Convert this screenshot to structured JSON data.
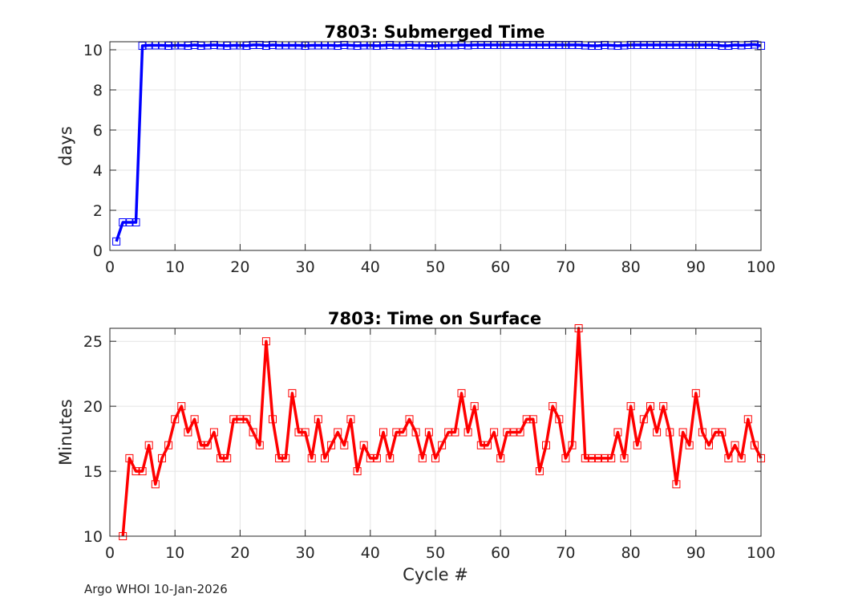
{
  "chart_data": [
    {
      "type": "line",
      "title": "7803: Submerged Time",
      "xlabel": "",
      "ylabel": "days",
      "xlim": [
        0,
        100
      ],
      "ylim": [
        0,
        10.4
      ],
      "xticks": [
        0,
        10,
        20,
        30,
        40,
        50,
        60,
        70,
        80,
        90,
        100
      ],
      "yticks": [
        0,
        2,
        4,
        6,
        8,
        10
      ],
      "grid": true,
      "color": "#0000ff",
      "marker": "square",
      "series": [
        {
          "name": "Submerged Time",
          "x": [
            1,
            2,
            3,
            4,
            5,
            6,
            7,
            8,
            9,
            10,
            11,
            12,
            13,
            14,
            15,
            16,
            17,
            18,
            19,
            20,
            21,
            22,
            23,
            24,
            25,
            26,
            27,
            28,
            29,
            30,
            31,
            32,
            33,
            34,
            35,
            36,
            37,
            38,
            39,
            40,
            41,
            42,
            43,
            44,
            45,
            46,
            47,
            48,
            49,
            50,
            51,
            52,
            53,
            54,
            55,
            56,
            57,
            58,
            59,
            60,
            61,
            62,
            63,
            64,
            65,
            66,
            67,
            68,
            69,
            70,
            71,
            72,
            73,
            74,
            75,
            76,
            77,
            78,
            79,
            80,
            81,
            82,
            83,
            84,
            85,
            86,
            87,
            88,
            89,
            90,
            91,
            92,
            93,
            94,
            95,
            96,
            97,
            98,
            99,
            100
          ],
          "values": [
            0.45,
            1.4,
            1.4,
            1.4,
            10.2,
            10.22,
            10.22,
            10.22,
            10.2,
            10.22,
            10.22,
            10.2,
            10.24,
            10.2,
            10.22,
            10.24,
            10.22,
            10.2,
            10.22,
            10.22,
            10.2,
            10.24,
            10.24,
            10.2,
            10.24,
            10.22,
            10.22,
            10.22,
            10.22,
            10.2,
            10.22,
            10.22,
            10.22,
            10.22,
            10.2,
            10.24,
            10.22,
            10.2,
            10.22,
            10.22,
            10.2,
            10.22,
            10.24,
            10.22,
            10.22,
            10.24,
            10.22,
            10.22,
            10.2,
            10.2,
            10.22,
            10.22,
            10.22,
            10.24,
            10.22,
            10.24,
            10.24,
            10.24,
            10.24,
            10.24,
            10.24,
            10.24,
            10.24,
            10.24,
            10.24,
            10.24,
            10.24,
            10.24,
            10.24,
            10.24,
            10.24,
            10.24,
            10.22,
            10.2,
            10.2,
            10.24,
            10.22,
            10.2,
            10.22,
            10.24,
            10.24,
            10.24,
            10.24,
            10.24,
            10.24,
            10.24,
            10.24,
            10.24,
            10.24,
            10.24,
            10.24,
            10.24,
            10.24,
            10.2,
            10.2,
            10.24,
            10.22,
            10.24,
            10.26,
            10.2
          ]
        }
      ]
    },
    {
      "type": "line",
      "title": "7803: Time on Surface",
      "xlabel": "Cycle #",
      "ylabel": "Minutes",
      "xlim": [
        0,
        100
      ],
      "ylim": [
        10,
        26
      ],
      "xticks": [
        0,
        10,
        20,
        30,
        40,
        50,
        60,
        70,
        80,
        90,
        100
      ],
      "yticks": [
        10,
        15,
        20,
        25
      ],
      "grid": true,
      "color": "#ff0000",
      "marker": "square",
      "series": [
        {
          "name": "Time on Surface",
          "x": [
            2,
            3,
            4,
            5,
            6,
            7,
            8,
            9,
            10,
            11,
            12,
            13,
            14,
            15,
            16,
            17,
            18,
            19,
            20,
            21,
            22,
            23,
            24,
            25,
            26,
            27,
            28,
            29,
            30,
            31,
            32,
            33,
            34,
            35,
            36,
            37,
            38,
            39,
            40,
            41,
            42,
            43,
            44,
            45,
            46,
            47,
            48,
            49,
            50,
            51,
            52,
            53,
            54,
            55,
            56,
            57,
            58,
            59,
            60,
            61,
            62,
            63,
            64,
            65,
            66,
            67,
            68,
            69,
            70,
            71,
            72,
            73,
            74,
            75,
            76,
            77,
            78,
            79,
            80,
            81,
            82,
            83,
            84,
            85,
            86,
            87,
            88,
            89,
            90,
            91,
            92,
            93,
            94,
            95,
            96,
            97,
            98,
            99,
            100
          ],
          "values": [
            10,
            16,
            15,
            15,
            17,
            14,
            16,
            17,
            19,
            20,
            18,
            19,
            17,
            17,
            18,
            16,
            16,
            19,
            19,
            19,
            18,
            17,
            25,
            19,
            16,
            16,
            21,
            18,
            18,
            16,
            19,
            16,
            17,
            18,
            17,
            19,
            15,
            17,
            16,
            16,
            18,
            16,
            18,
            18,
            19,
            18,
            16,
            18,
            16,
            17,
            18,
            18,
            21,
            18,
            20,
            17,
            17,
            18,
            16,
            18,
            18,
            18,
            19,
            19,
            15,
            17,
            20,
            19,
            16,
            17,
            26,
            16,
            16,
            16,
            16,
            16,
            18,
            16,
            20,
            17,
            19,
            20,
            18,
            20,
            18,
            14,
            18,
            17,
            21,
            18,
            17,
            18,
            18,
            16,
            17,
            16,
            19,
            17,
            16
          ]
        }
      ]
    }
  ],
  "footer": "Argo WHOI 10-Jan-2026"
}
